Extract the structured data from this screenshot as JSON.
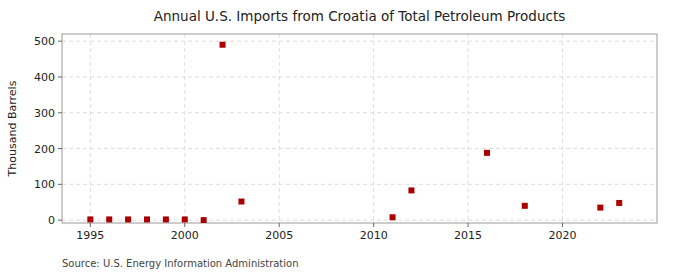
{
  "chart_data": {
    "type": "scatter",
    "title": "Annual U.S. Imports from Croatia of Total Petroleum Products",
    "ylabel": "Thousand Barrels",
    "source": "Source: U.S. Energy Information Administration",
    "x": [
      1995,
      1996,
      1997,
      1998,
      1999,
      2000,
      2001,
      2002,
      2003,
      2011,
      2012,
      2016,
      2018,
      2022,
      2023
    ],
    "values": [
      2,
      2,
      2,
      2,
      2,
      2,
      0,
      490,
      52,
      8,
      83,
      188,
      40,
      35,
      48
    ],
    "color": "#aa0000",
    "marker": "square",
    "xlim": [
      1993.5,
      2025
    ],
    "ylim": [
      -8,
      520
    ],
    "xticks": [
      1995,
      2000,
      2005,
      2010,
      2015,
      2020
    ],
    "yticks": [
      0,
      100,
      200,
      300,
      400,
      500
    ],
    "grid": true
  }
}
